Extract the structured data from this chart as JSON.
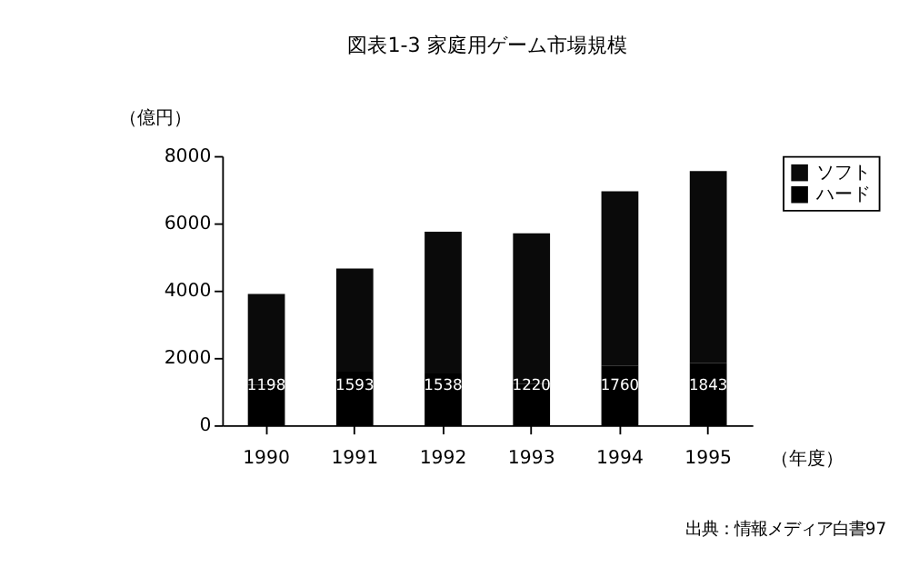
{
  "chart_data": {
    "type": "bar",
    "stacked": true,
    "title": "図表1-3  家庭用ゲーム市場規模",
    "ylabel": "（億円）",
    "xlabel": "（年度）",
    "categories": [
      "1990",
      "1991",
      "1992",
      "1993",
      "1994",
      "1995"
    ],
    "series": [
      {
        "name": "ハード",
        "color": "#000000",
        "values": [
          1198,
          1593,
          1538,
          1220,
          1760,
          1843
        ],
        "value_labels": [
          "1198",
          "1593",
          "1538",
          "1220",
          "1760",
          "1843"
        ]
      },
      {
        "name": "ソフト",
        "color": "#0a0a0a",
        "values": [
          2700,
          3060,
          4210,
          4480,
          5190,
          5710
        ]
      }
    ],
    "ylim": [
      0,
      8000
    ],
    "yticks": [
      0,
      2000,
      4000,
      6000,
      8000
    ],
    "grid": false,
    "legend": "right",
    "annotations": [
      "出典：情報メディア白書97"
    ]
  }
}
